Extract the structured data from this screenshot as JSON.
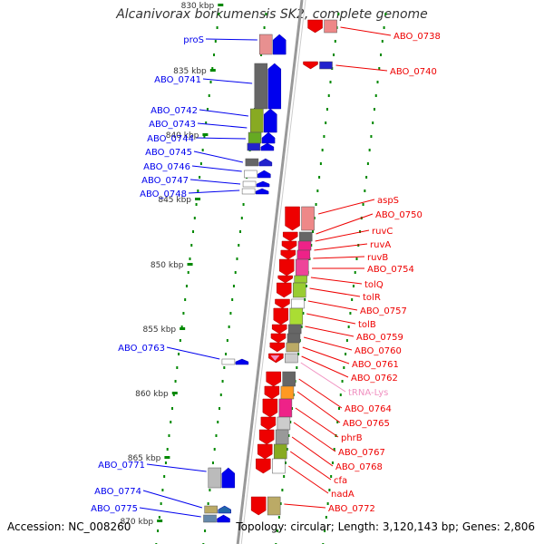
{
  "title": "Alcanivorax borkumensis SK2, complete genome",
  "footer": {
    "accession": "Accession: NC_008260",
    "topology": "Topology: circular; Length: 3,120,143 bp; Genes: 2,806"
  },
  "colors": {
    "plus_strand": "#0000ee",
    "minus_strand": "#ee0000",
    "trna": "#f090c0",
    "tick": "#008800",
    "backbone": "#999999"
  },
  "scale_labels": [
    "830 kbp",
    "835 kbp",
    "840 kbp",
    "845 kbp",
    "850 kbp",
    "855 kbp",
    "860 kbp",
    "865 kbp",
    "870 kbp"
  ],
  "left_labels": [
    "proS",
    "ABO_0741",
    "ABO_0742",
    "ABO_0743",
    "ABO_0744",
    "ABO_0745",
    "ABO_0746",
    "ABO_0747",
    "ABO_0748",
    "ABO_0763",
    "ABO_0771",
    "ABO_0774",
    "ABO_0775"
  ],
  "right_labels": [
    "ABO_0738",
    "ABO_0740",
    "aspS",
    "ABO_0750",
    "ruvC",
    "ruvA",
    "ruvB",
    "ABO_0754",
    "tolQ",
    "tolR",
    "ABO_0757",
    "tolB",
    "ABO_0759",
    "ABO_0760",
    "ABO_0761",
    "ABO_0762",
    "tRNA-Lys",
    "ABO_0764",
    "ABO_0765",
    "phrB",
    "ABO_0767",
    "ABO_0768",
    "cfa",
    "nadA",
    "ABO_0772"
  ]
}
